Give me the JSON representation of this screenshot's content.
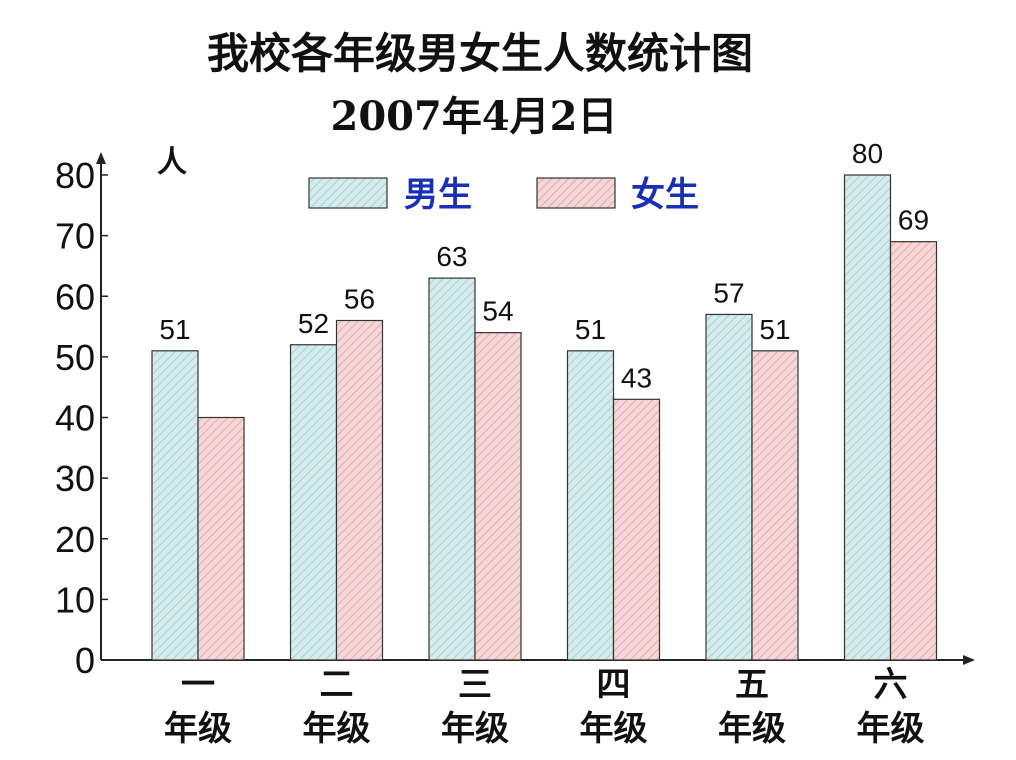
{
  "chart_data": {
    "type": "bar",
    "title": "我校各年级男女生人数统计图",
    "subtitle": "2007年4月2日",
    "ylabel": "人",
    "xlabel": "",
    "categories": [
      {
        "line1": "一",
        "line2": "年级"
      },
      {
        "line1": "二",
        "line2": "年级"
      },
      {
        "line1": "三",
        "line2": "年级"
      },
      {
        "line1": "四",
        "line2": "年级"
      },
      {
        "line1": "五",
        "line2": "年级"
      },
      {
        "line1": "六",
        "line2": "年级"
      }
    ],
    "series": [
      {
        "name": "男生",
        "values": [
          51,
          52,
          63,
          51,
          57,
          80
        ],
        "labels": [
          "51",
          "52",
          "63",
          "51",
          "57",
          "80"
        ],
        "color": "#d4ecec",
        "hatch": "#9cc4c4"
      },
      {
        "name": "女生",
        "values": [
          40,
          56,
          54,
          43,
          51,
          69
        ],
        "labels": [
          "",
          "56",
          "54",
          "43",
          "51",
          "69"
        ],
        "color": "#f6d6d6",
        "hatch": "#d79a9a"
      }
    ],
    "yticks": [
      "0",
      "10",
      "20",
      "30",
      "40",
      "50",
      "60",
      "70",
      "80"
    ],
    "ylim": [
      0,
      80
    ],
    "grid": false,
    "legend_position": "top-center",
    "colors": {
      "ylabel": "#cc1111",
      "legend_text": "#1a2fb8"
    }
  }
}
